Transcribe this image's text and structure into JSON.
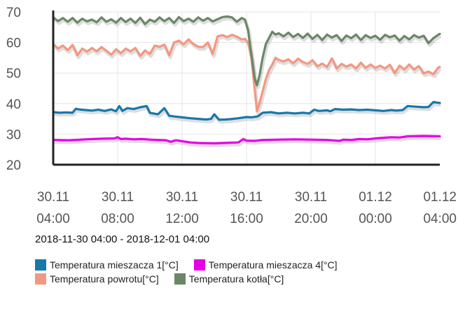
{
  "chart_data": {
    "type": "line",
    "ylim": [
      20,
      70
    ],
    "yticks": [
      20,
      30,
      40,
      50,
      60,
      70
    ],
    "xlim": [
      0,
      24
    ],
    "xticks": [
      {
        "x": 0,
        "line1": "30.11",
        "line2": "04:00"
      },
      {
        "x": 4,
        "line1": "30.11",
        "line2": "08:00"
      },
      {
        "x": 8,
        "line1": "30.11",
        "line2": "12:00"
      },
      {
        "x": 12,
        "line1": "30.11",
        "line2": "16:00"
      },
      {
        "x": 16,
        "line1": "30.11",
        "line2": "20:00"
      },
      {
        "x": 20,
        "line1": "01.12",
        "line2": "00:00"
      },
      {
        "x": 24,
        "line1": "01.12",
        "line2": "04:00"
      }
    ],
    "grid": true,
    "series": [
      {
        "name": "Temperatura mieszacza 1[°C]",
        "color": "#1778aa",
        "x": [
          0,
          0.4,
          0.8,
          1.2,
          1.4,
          1.6,
          2.0,
          2.4,
          2.8,
          3.2,
          3.6,
          3.9,
          4.1,
          4.3,
          4.6,
          5.0,
          5.4,
          5.8,
          6.0,
          6.2,
          6.5,
          6.9,
          7.2,
          7.5,
          8.0,
          8.5,
          9.0,
          9.5,
          9.8,
          10.0,
          10.3,
          10.7,
          11.0,
          11.5,
          12.0,
          12.3,
          12.7,
          13.0,
          13.5,
          14.0,
          14.5,
          15.0,
          15.5,
          15.9,
          16.2,
          16.5,
          17.0,
          17.2,
          17.5,
          18.0,
          18.5,
          19.0,
          19.5,
          20.0,
          20.5,
          21.0,
          21.3,
          21.7,
          22.0,
          22.5,
          23.0,
          23.3,
          23.6,
          24.0
        ],
        "y": [
          37.2,
          37.0,
          37.1,
          37.0,
          38.3,
          38.1,
          37.9,
          37.7,
          38.0,
          37.6,
          38.1,
          37.5,
          39.2,
          37.6,
          38.5,
          38.2,
          38.8,
          39.2,
          37.0,
          36.8,
          36.5,
          38.5,
          36.0,
          35.8,
          35.5,
          35.2,
          35.0,
          34.8,
          35.0,
          36.5,
          34.7,
          34.8,
          34.9,
          35.2,
          35.6,
          35.5,
          35.8,
          37.0,
          37.2,
          36.8,
          37.0,
          36.8,
          37.0,
          36.8,
          38.0,
          37.6,
          37.8,
          37.5,
          38.2,
          38.0,
          38.1,
          37.9,
          38.0,
          37.8,
          37.6,
          37.9,
          37.7,
          37.9,
          39.2,
          39.0,
          38.8,
          38.9,
          40.5,
          40.2
        ]
      },
      {
        "name": "Temperatura mieszacza 4[°C]",
        "color": "#e600e6",
        "x": [
          0,
          1.0,
          2.0,
          3.0,
          3.8,
          4.0,
          4.2,
          4.5,
          5.0,
          5.5,
          6.0,
          6.5,
          7.0,
          7.3,
          7.6,
          8.0,
          8.5,
          9.0,
          10.0,
          11.0,
          11.5,
          11.8,
          12.0,
          12.5,
          13.0,
          14.0,
          15.0,
          16.0,
          17.0,
          17.8,
          18.0,
          18.5,
          19.0,
          19.5,
          20.0,
          20.5,
          21.0,
          21.5,
          22.0,
          23.0,
          24.0
        ],
        "y": [
          28.1,
          28.0,
          28.3,
          28.5,
          28.6,
          29.0,
          28.4,
          28.5,
          28.3,
          28.4,
          28.2,
          28.1,
          28.0,
          27.5,
          28.0,
          27.7,
          27.3,
          27.1,
          27.0,
          27.2,
          27.3,
          28.4,
          27.9,
          27.8,
          28.1,
          28.2,
          28.3,
          28.2,
          28.1,
          27.8,
          28.2,
          28.1,
          28.4,
          28.3,
          28.6,
          28.8,
          29.0,
          28.9,
          29.3,
          29.4,
          29.3
        ]
      },
      {
        "name": "Temperatura powrotu[°C]",
        "color": "#f29882",
        "x": [
          0,
          0.3,
          0.6,
          0.9,
          1.2,
          1.5,
          1.8,
          2.1,
          2.4,
          2.7,
          3.0,
          3.3,
          3.6,
          3.9,
          4.2,
          4.5,
          4.8,
          5.1,
          5.4,
          5.7,
          6.0,
          6.3,
          6.6,
          6.9,
          7.2,
          7.5,
          7.8,
          8.1,
          8.4,
          8.7,
          9.0,
          9.3,
          9.6,
          9.9,
          10.2,
          10.5,
          10.8,
          11.1,
          11.4,
          11.7,
          11.9,
          12.1,
          12.3,
          12.5,
          12.65,
          12.8,
          13.0,
          13.2,
          13.4,
          13.6,
          13.8,
          14.0,
          14.3,
          14.6,
          14.9,
          15.2,
          15.5,
          15.8,
          16.1,
          16.4,
          16.7,
          17.0,
          17.3,
          17.6,
          17.9,
          18.2,
          18.5,
          18.8,
          19.1,
          19.4,
          19.7,
          20.0,
          20.3,
          20.6,
          20.9,
          21.2,
          21.5,
          21.8,
          22.1,
          22.4,
          22.7,
          23.0,
          23.3,
          23.6,
          23.9,
          24.0
        ],
        "y": [
          59.5,
          58.0,
          59.0,
          57.5,
          59.2,
          55.8,
          58.0,
          57.0,
          58.2,
          57.1,
          58.5,
          57.3,
          56.0,
          57.8,
          56.5,
          58.0,
          57.1,
          58.2,
          55.6,
          57.4,
          56.2,
          59.0,
          58.6,
          59.3,
          55.8,
          60.0,
          60.6,
          59.4,
          61.0,
          59.5,
          58.6,
          58.5,
          60.0,
          56.2,
          62.0,
          62.4,
          61.8,
          62.5,
          61.9,
          61.0,
          61.2,
          60.0,
          55.0,
          45.0,
          37.5,
          40.0,
          44.0,
          48.0,
          51.0,
          52.8,
          55.0,
          54.3,
          53.8,
          54.5,
          53.2,
          54.7,
          53.6,
          53.0,
          54.2,
          52.2,
          53.1,
          52.0,
          54.8,
          51.5,
          53.0,
          52.1,
          52.8,
          51.5,
          53.4,
          51.7,
          52.8,
          51.7,
          52.4,
          51.5,
          52.7,
          50.0,
          52.4,
          51.2,
          52.8,
          51.2,
          52.3,
          49.9,
          50.5,
          49.6,
          51.8,
          52.0
        ]
      },
      {
        "name": "Temperatura kotła[°C]",
        "color": "#6a8768",
        "x": [
          0,
          0.3,
          0.6,
          0.9,
          1.2,
          1.5,
          1.8,
          2.1,
          2.4,
          2.7,
          3.0,
          3.3,
          3.6,
          3.9,
          4.2,
          4.5,
          4.8,
          5.1,
          5.4,
          5.7,
          6.0,
          6.3,
          6.6,
          6.9,
          7.2,
          7.5,
          7.8,
          8.1,
          8.4,
          8.7,
          9.0,
          9.3,
          9.6,
          9.9,
          10.2,
          10.5,
          10.8,
          11.1,
          11.4,
          11.7,
          11.9,
          12.1,
          12.3,
          12.5,
          12.65,
          12.8,
          13.0,
          13.2,
          13.4,
          13.6,
          13.8,
          14.0,
          14.3,
          14.6,
          14.9,
          15.2,
          15.5,
          15.8,
          16.1,
          16.4,
          16.7,
          17.0,
          17.3,
          17.6,
          17.9,
          18.2,
          18.5,
          18.8,
          19.1,
          19.4,
          19.7,
          20.0,
          20.3,
          20.6,
          20.9,
          21.2,
          21.5,
          21.8,
          22.1,
          22.4,
          22.7,
          23.0,
          23.3,
          23.6,
          23.9,
          24.0
        ],
        "y": [
          68.2,
          67.0,
          68.0,
          66.8,
          68.0,
          66.5,
          67.8,
          66.9,
          67.5,
          66.6,
          68.2,
          66.8,
          67.6,
          66.5,
          68.0,
          66.7,
          67.8,
          66.4,
          68.1,
          66.0,
          67.5,
          66.8,
          68.2,
          67.0,
          68.0,
          66.4,
          68.3,
          67.0,
          67.8,
          66.8,
          68.2,
          67.1,
          68.0,
          66.9,
          67.6,
          68.3,
          68.5,
          68.2,
          66.8,
          68.0,
          67.5,
          64.0,
          56.0,
          48.5,
          46.0,
          49.0,
          55.0,
          59.5,
          61.5,
          63.5,
          62.6,
          63.0,
          62.0,
          63.2,
          61.8,
          62.8,
          61.5,
          62.9,
          61.2,
          62.5,
          60.8,
          62.6,
          61.6,
          62.4,
          60.5,
          62.3,
          61.4,
          62.6,
          60.8,
          62.4,
          61.5,
          62.2,
          60.9,
          62.5,
          61.7,
          62.3,
          60.6,
          62.1,
          61.0,
          62.4,
          61.6,
          62.2,
          59.8,
          61.4,
          62.5,
          62.8
        ]
      }
    ]
  },
  "date_range": "2018-11-30 04:00 - 2018-12-01 04:00",
  "legend": [
    {
      "label": "Temperatura mieszacza 1[°C]",
      "color": "#1778aa"
    },
    {
      "label": "Temperatura mieszacza 4[°C]",
      "color": "#e600e6"
    },
    {
      "label": "Temperatura powrotu[°C]",
      "color": "#f29882"
    },
    {
      "label": "Temperatura kotła[°C]",
      "color": "#6a8768"
    }
  ]
}
